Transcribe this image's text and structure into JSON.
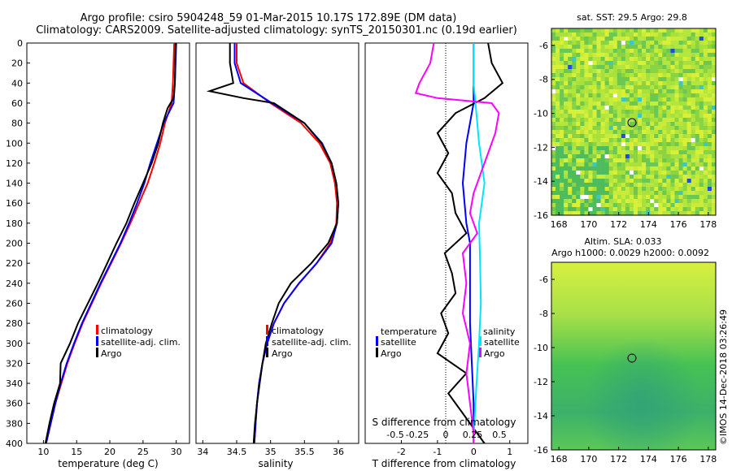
{
  "header": {
    "line1": "Argo profile: csiro 5904248_59 01-Mar-2015 10.17S 172.89E (DM data)",
    "line2": "Climatology: CARS2009. Satellite-adjusted climatology: synTS_20150301.nc (0.19d earlier)"
  },
  "footer_stamp": "©IMOS 14-Dec-2018 03:26:49",
  "colors": {
    "climatology": "#ff0000",
    "satellite": "#0000ff",
    "argo": "#000000",
    "sat_salinity": "#00e5ff",
    "argo_salinity": "#ff00ff"
  },
  "chart_data": [
    {
      "type": "line",
      "id": "temperature",
      "xlabel": "temperature (deg C)",
      "ylim": [
        400,
        0
      ],
      "xlim": [
        7.5,
        32
      ],
      "xticks": [
        10,
        15,
        20,
        25,
        30
      ],
      "yticks": [
        0,
        20,
        40,
        60,
        80,
        100,
        120,
        140,
        160,
        180,
        200,
        220,
        240,
        260,
        280,
        300,
        320,
        340,
        360,
        380,
        400
      ],
      "legend": [
        "climatology",
        "satellite-adj. clim.",
        "Argo"
      ],
      "series": [
        {
          "name": "climatology",
          "color": "#ff0000",
          "depth": [
            0,
            40,
            60,
            80,
            100,
            120,
            140,
            160,
            180,
            200,
            220,
            240,
            260,
            280,
            300,
            320,
            340,
            360,
            380,
            400
          ],
          "values": [
            29.7,
            29.5,
            29.3,
            28.3,
            27.6,
            26.7,
            25.7,
            24.4,
            23.1,
            21.7,
            20.2,
            18.7,
            17.3,
            15.9,
            14.7,
            13.6,
            12.7,
            11.8,
            11.1,
            10.4
          ]
        },
        {
          "name": "satellite-adj. clim.",
          "color": "#0000ff",
          "depth": [
            0,
            40,
            60,
            80,
            100,
            120,
            140,
            160,
            180,
            200,
            220,
            240,
            260,
            280,
            300,
            320,
            340,
            360,
            380,
            400
          ],
          "values": [
            30.0,
            29.8,
            29.6,
            28.1,
            27.1,
            26.1,
            25.2,
            24.1,
            22.9,
            21.6,
            20.1,
            18.6,
            17.2,
            15.8,
            14.6,
            13.5,
            12.6,
            11.8,
            11.1,
            10.4
          ]
        },
        {
          "name": "Argo",
          "color": "#000000",
          "depth": [
            0,
            40,
            55,
            65,
            80,
            100,
            120,
            140,
            160,
            180,
            200,
            220,
            240,
            260,
            280,
            300,
            320,
            340,
            360,
            380,
            400
          ],
          "values": [
            29.9,
            29.8,
            29.6,
            28.7,
            28.0,
            27.3,
            26.3,
            25.0,
            23.7,
            22.5,
            21.0,
            19.6,
            18.2,
            16.7,
            15.2,
            14.0,
            12.6,
            12.5,
            11.6,
            10.9,
            10.3
          ]
        }
      ]
    },
    {
      "type": "line",
      "id": "salinity",
      "xlabel": "salinity",
      "ylim": [
        400,
        0
      ],
      "xlim": [
        33.9,
        36.3
      ],
      "xticks": [
        34,
        34.5,
        35,
        35.5,
        36
      ],
      "legend": [
        "climatology",
        "satellite-adj. clim.",
        "Argo"
      ],
      "series": [
        {
          "name": "climatology",
          "color": "#ff0000",
          "depth": [
            0,
            20,
            40,
            60,
            80,
            100,
            120,
            140,
            160,
            180,
            200,
            220,
            240,
            260,
            280,
            300,
            320,
            340,
            360,
            380,
            400
          ],
          "values": [
            34.5,
            34.5,
            34.6,
            35.0,
            35.45,
            35.72,
            35.88,
            35.95,
            35.98,
            35.97,
            35.88,
            35.68,
            35.42,
            35.2,
            35.05,
            34.95,
            34.88,
            34.83,
            34.8,
            34.78,
            34.76
          ]
        },
        {
          "name": "satellite-adj. clim.",
          "color": "#0000ff",
          "depth": [
            0,
            20,
            40,
            60,
            80,
            100,
            120,
            140,
            160,
            180,
            200,
            220,
            240,
            260,
            280,
            300,
            320,
            340,
            360,
            380,
            400
          ],
          "values": [
            34.47,
            34.47,
            34.56,
            35.02,
            35.5,
            35.76,
            35.9,
            35.97,
            36.0,
            35.98,
            35.9,
            35.68,
            35.42,
            35.2,
            35.05,
            34.95,
            34.88,
            34.83,
            34.8,
            34.78,
            34.76
          ]
        },
        {
          "name": "Argo",
          "color": "#000000",
          "depth": [
            0,
            20,
            40,
            48,
            55,
            60,
            80,
            100,
            120,
            140,
            160,
            180,
            200,
            220,
            240,
            260,
            280,
            300,
            320,
            340,
            360,
            380,
            400
          ],
          "values": [
            34.4,
            34.4,
            34.45,
            34.1,
            34.6,
            35.05,
            35.5,
            35.75,
            35.9,
            35.97,
            36.0,
            35.98,
            35.85,
            35.6,
            35.3,
            35.12,
            35.02,
            34.93,
            34.88,
            34.84,
            34.8,
            34.77,
            34.75
          ]
        }
      ]
    },
    {
      "type": "line",
      "id": "difference",
      "xlabel": "T difference from climatology",
      "top_axis_label": "S difference from climatology",
      "ylim": [
        400,
        0
      ],
      "xlim": [
        -3,
        1.5
      ],
      "xticks": [
        -2,
        -1,
        0,
        1
      ],
      "top_ticks": [
        "-0.5",
        "-0.25",
        "0",
        "0.25",
        "0.5"
      ],
      "legend_left": [
        "temperature",
        "satellite",
        "Argo"
      ],
      "legend_right": [
        "salinity",
        "satellite",
        "Argo"
      ],
      "series": [
        {
          "name": "temperature satellite",
          "color": "#0000ff",
          "depth": [
            0,
            60,
            100,
            140,
            180,
            200,
            240,
            280,
            320,
            360,
            400
          ],
          "values": [
            0.0,
            0.0,
            -0.2,
            -0.3,
            -0.2,
            -0.1,
            -0.1,
            -0.1,
            -0.05,
            0.0,
            0.0
          ]
        },
        {
          "name": "temperature Argo",
          "color": "#000000",
          "depth": [
            0,
            20,
            40,
            55,
            70,
            90,
            110,
            130,
            150,
            170,
            190,
            210,
            230,
            250,
            270,
            290,
            310,
            330,
            350,
            370,
            390,
            400
          ],
          "values": [
            0.4,
            0.5,
            0.8,
            0.3,
            -0.5,
            -1.0,
            -0.7,
            -1.0,
            -0.6,
            -0.5,
            -0.2,
            -0.8,
            -0.6,
            -0.5,
            -0.9,
            -0.7,
            -1.0,
            -0.2,
            -0.7,
            -0.3,
            0.1,
            0.3
          ]
        },
        {
          "name": "salinity satellite",
          "color": "#00e5ff",
          "depth": [
            0,
            40,
            60,
            100,
            140,
            180,
            220,
            260,
            300,
            340,
            380,
            400
          ],
          "values": [
            0.0,
            0.0,
            0.05,
            0.15,
            0.3,
            0.15,
            0.18,
            0.2,
            0.15,
            0.08,
            0.02,
            0.0
          ]
        },
        {
          "name": "salinity Argo",
          "color": "#ff00ff",
          "depth": [
            0,
            20,
            40,
            50,
            55,
            60,
            70,
            90,
            110,
            130,
            150,
            170,
            190,
            210,
            240,
            270,
            300,
            330,
            360,
            390,
            400
          ],
          "values": [
            -1.1,
            -1.2,
            -1.5,
            -1.6,
            -1.0,
            0.5,
            0.7,
            0.6,
            0.4,
            0.2,
            0.0,
            -0.1,
            0.1,
            -0.3,
            -0.2,
            -0.3,
            -0.1,
            -0.2,
            -0.1,
            0.0,
            0.0
          ]
        }
      ]
    },
    {
      "type": "heatmap",
      "id": "sst_map",
      "title": "sat. SST: 29.5 Argo: 29.8",
      "xticks": [
        168,
        170,
        172,
        174,
        176,
        178
      ],
      "yticks": [
        -6,
        -8,
        -10,
        -12,
        -14,
        -16
      ],
      "marker": {
        "lon": 172.89,
        "lat": -10.17
      }
    },
    {
      "type": "heatmap",
      "id": "sla_map",
      "title1": "Altim. SLA: 0.033",
      "title2": "Argo h1000: 0.0029 h2000: 0.0092",
      "xticks": [
        168,
        170,
        172,
        174,
        176,
        178
      ],
      "yticks": [
        -6,
        -8,
        -10,
        -12,
        -14,
        -16
      ],
      "marker": {
        "lon": 172.89,
        "lat": -10.17
      }
    }
  ]
}
